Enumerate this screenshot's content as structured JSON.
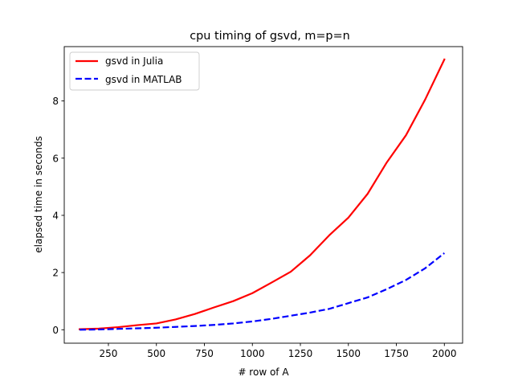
{
  "chart_data": {
    "type": "line",
    "title": "cpu timing of gsvd, m=p=n",
    "xlabel": "# row of A",
    "ylabel": "elapsed time in seconds",
    "xlim": [
      20,
      2095
    ],
    "ylim": [
      -0.47,
      9.9
    ],
    "xticks": [
      250,
      500,
      750,
      1000,
      1250,
      1500,
      1750,
      2000
    ],
    "xtick_labels": [
      "250",
      "500",
      "750",
      "1000",
      "1250",
      "1500",
      "1750",
      "2000"
    ],
    "yticks": [
      0,
      2,
      4,
      6,
      8
    ],
    "ytick_labels": [
      "0",
      "2",
      "4",
      "6",
      "8"
    ],
    "grid": false,
    "legend_position": "top-left",
    "series": [
      {
        "name": "gsvd in Julia",
        "color": "#ff0000",
        "style": "solid",
        "x": [
          100,
          200,
          300,
          400,
          500,
          600,
          700,
          800,
          900,
          1000,
          1100,
          1200,
          1300,
          1400,
          1500,
          1600,
          1700,
          1800,
          1900,
          2000
        ],
        "y": [
          0.02,
          0.04,
          0.09,
          0.16,
          0.22,
          0.36,
          0.55,
          0.78,
          1.0,
          1.28,
          1.65,
          2.03,
          2.6,
          3.3,
          3.92,
          4.75,
          5.85,
          6.8,
          8.05,
          9.45
        ]
      },
      {
        "name": "gsvd in MATLAB",
        "color": "#0000ff",
        "style": "dashed",
        "x": [
          100,
          200,
          300,
          400,
          500,
          600,
          700,
          800,
          900,
          1000,
          1100,
          1200,
          1300,
          1400,
          1500,
          1600,
          1700,
          1800,
          1900,
          2000
        ],
        "y": [
          0.0,
          0.01,
          0.03,
          0.05,
          0.07,
          0.1,
          0.13,
          0.17,
          0.22,
          0.29,
          0.38,
          0.49,
          0.6,
          0.73,
          0.93,
          1.13,
          1.42,
          1.74,
          2.15,
          2.68
        ]
      }
    ]
  }
}
